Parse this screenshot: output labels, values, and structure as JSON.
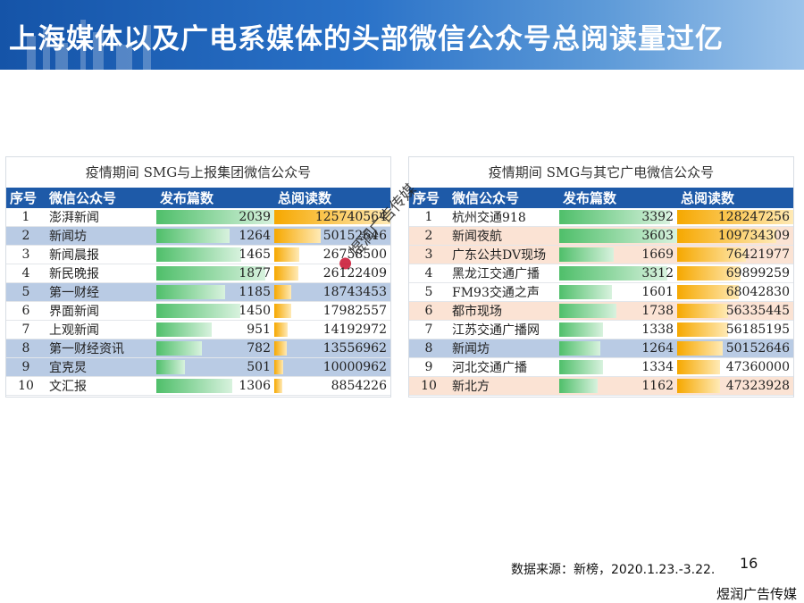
{
  "title": "上海媒体以及广电系媒体的头部微信公众号总阅读量过亿",
  "headers": [
    "序号",
    "微信公众号",
    "发布篇数",
    "总阅读数"
  ],
  "left": {
    "title": "疫情期间 SMG与上报集团微信公众号",
    "rows": [
      {
        "idx": "1",
        "name": "澎湃新闻",
        "posts": 2039,
        "reads": 125740564,
        "highlight": false
      },
      {
        "idx": "2",
        "name": "新闻坊",
        "posts": 1264,
        "reads": 50152646,
        "highlight": true
      },
      {
        "idx": "3",
        "name": "新闻晨报",
        "posts": 1465,
        "reads": 26758500,
        "highlight": false
      },
      {
        "idx": "4",
        "name": "新民晚报",
        "posts": 1877,
        "reads": 26122409,
        "highlight": false
      },
      {
        "idx": "5",
        "name": "第一财经",
        "posts": 1185,
        "reads": 18743453,
        "highlight": true
      },
      {
        "idx": "6",
        "name": "界面新闻",
        "posts": 1450,
        "reads": 17982557,
        "highlight": false
      },
      {
        "idx": "7",
        "name": "上观新闻",
        "posts": 951,
        "reads": 14192972,
        "highlight": false
      },
      {
        "idx": "8",
        "name": "第一财经资讯",
        "posts": 782,
        "reads": 13556962,
        "highlight": true
      },
      {
        "idx": "9",
        "name": "宜克炅",
        "posts": 501,
        "reads": 10000962,
        "highlight": true
      },
      {
        "idx": "10",
        "name": "文汇报",
        "posts": 1306,
        "reads": 8854226,
        "highlight": false
      }
    ]
  },
  "right": {
    "title": "疫情期间 SMG与其它广电微信公众号",
    "rows": [
      {
        "idx": "1",
        "name": "杭州交通918",
        "posts": 3392,
        "reads": 128247256,
        "highlight": false
      },
      {
        "idx": "2",
        "name": "新闻夜航",
        "posts": 3603,
        "reads": 109734309,
        "highlight": true
      },
      {
        "idx": "3",
        "name": "广东公共DV现场",
        "posts": 1669,
        "reads": 76421977,
        "highlight": true
      },
      {
        "idx": "4",
        "name": "黑龙江交通广播",
        "posts": 3312,
        "reads": 69899259,
        "highlight": false
      },
      {
        "idx": "5",
        "name": "FM93交通之声",
        "posts": 1601,
        "reads": 68042830,
        "highlight": false
      },
      {
        "idx": "6",
        "name": "都市现场",
        "posts": 1738,
        "reads": 56335445,
        "highlight": true
      },
      {
        "idx": "7",
        "name": "江苏交通广播网",
        "posts": 1338,
        "reads": 56185195,
        "highlight": false
      },
      {
        "idx": "8",
        "name": "新闻坊",
        "posts": 1264,
        "reads": 50152646,
        "highlight": "blue"
      },
      {
        "idx": "9",
        "name": "河北交通广播",
        "posts": 1334,
        "reads": 47360000,
        "highlight": false
      },
      {
        "idx": "10",
        "name": "新北方",
        "posts": 1162,
        "reads": 47323928,
        "highlight": true
      }
    ]
  },
  "watermark": "煜润广告传媒",
  "source": "数据来源：新榜，2020.1.23.-3.22.",
  "page_number": "16",
  "brand": "煜润广告传媒",
  "colors": {
    "header": "#1e5aa8",
    "highlight_left": "#b9cbe4",
    "highlight_right": "#fbe3d4",
    "bar_posts": "#4fbf6a",
    "bar_reads": "#f6a800"
  }
}
